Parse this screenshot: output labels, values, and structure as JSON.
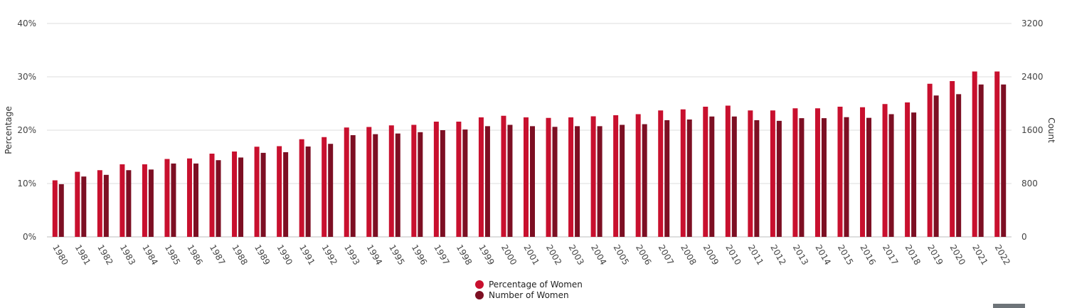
{
  "chart_data": {
    "type": "bar",
    "categories": [
      "1980",
      "1981",
      "1982",
      "1983",
      "1984",
      "1985",
      "1986",
      "1987",
      "1988",
      "1989",
      "1990",
      "1991",
      "1992",
      "1993",
      "1994",
      "1995",
      "1996",
      "1997",
      "1998",
      "1999",
      "2000",
      "2001",
      "2002",
      "2003",
      "2004",
      "2005",
      "2006",
      "2007",
      "2008",
      "2009",
      "2010",
      "2011",
      "2012",
      "2013",
      "2014",
      "2015",
      "2016",
      "2017",
      "2018",
      "2019",
      "2020",
      "2021",
      "2022"
    ],
    "series": [
      {
        "name": "Percentage of Women",
        "axis": "left",
        "color": "#c8102e",
        "values": [
          10.6,
          12.2,
          12.5,
          13.6,
          13.6,
          14.6,
          14.7,
          15.6,
          16.0,
          16.9,
          17.0,
          18.3,
          18.7,
          20.5,
          20.6,
          20.9,
          21.0,
          21.6,
          21.6,
          22.4,
          22.7,
          22.4,
          22.3,
          22.4,
          22.6,
          22.8,
          23.0,
          23.7,
          23.9,
          24.4,
          24.6,
          23.7,
          23.7,
          24.1,
          24.1,
          24.4,
          24.3,
          24.9,
          25.2,
          28.7,
          29.2,
          31.0,
          31.0
        ]
      },
      {
        "name": "Number of Women",
        "axis": "right",
        "color": "#7d0f23",
        "values": [
          790,
          905,
          930,
          1000,
          1010,
          1100,
          1100,
          1150,
          1190,
          1260,
          1270,
          1355,
          1395,
          1525,
          1540,
          1550,
          1570,
          1600,
          1610,
          1660,
          1680,
          1660,
          1650,
          1660,
          1660,
          1680,
          1690,
          1750,
          1760,
          1805,
          1805,
          1750,
          1740,
          1780,
          1780,
          1795,
          1785,
          1840,
          1865,
          2120,
          2140,
          2285,
          2285
        ]
      }
    ],
    "ylabel": "Percentage",
    "y2label": "Count",
    "ylim": [
      0,
      40
    ],
    "y2lim": [
      0,
      3200
    ],
    "yticks": [
      "0%",
      "10%",
      "20%",
      "30%",
      "40%"
    ],
    "y2ticks": [
      "0",
      "800",
      "1600",
      "2400",
      "3200"
    ],
    "grid": true,
    "legend_position": "bottom-center",
    "xtick_rotation": 60
  }
}
